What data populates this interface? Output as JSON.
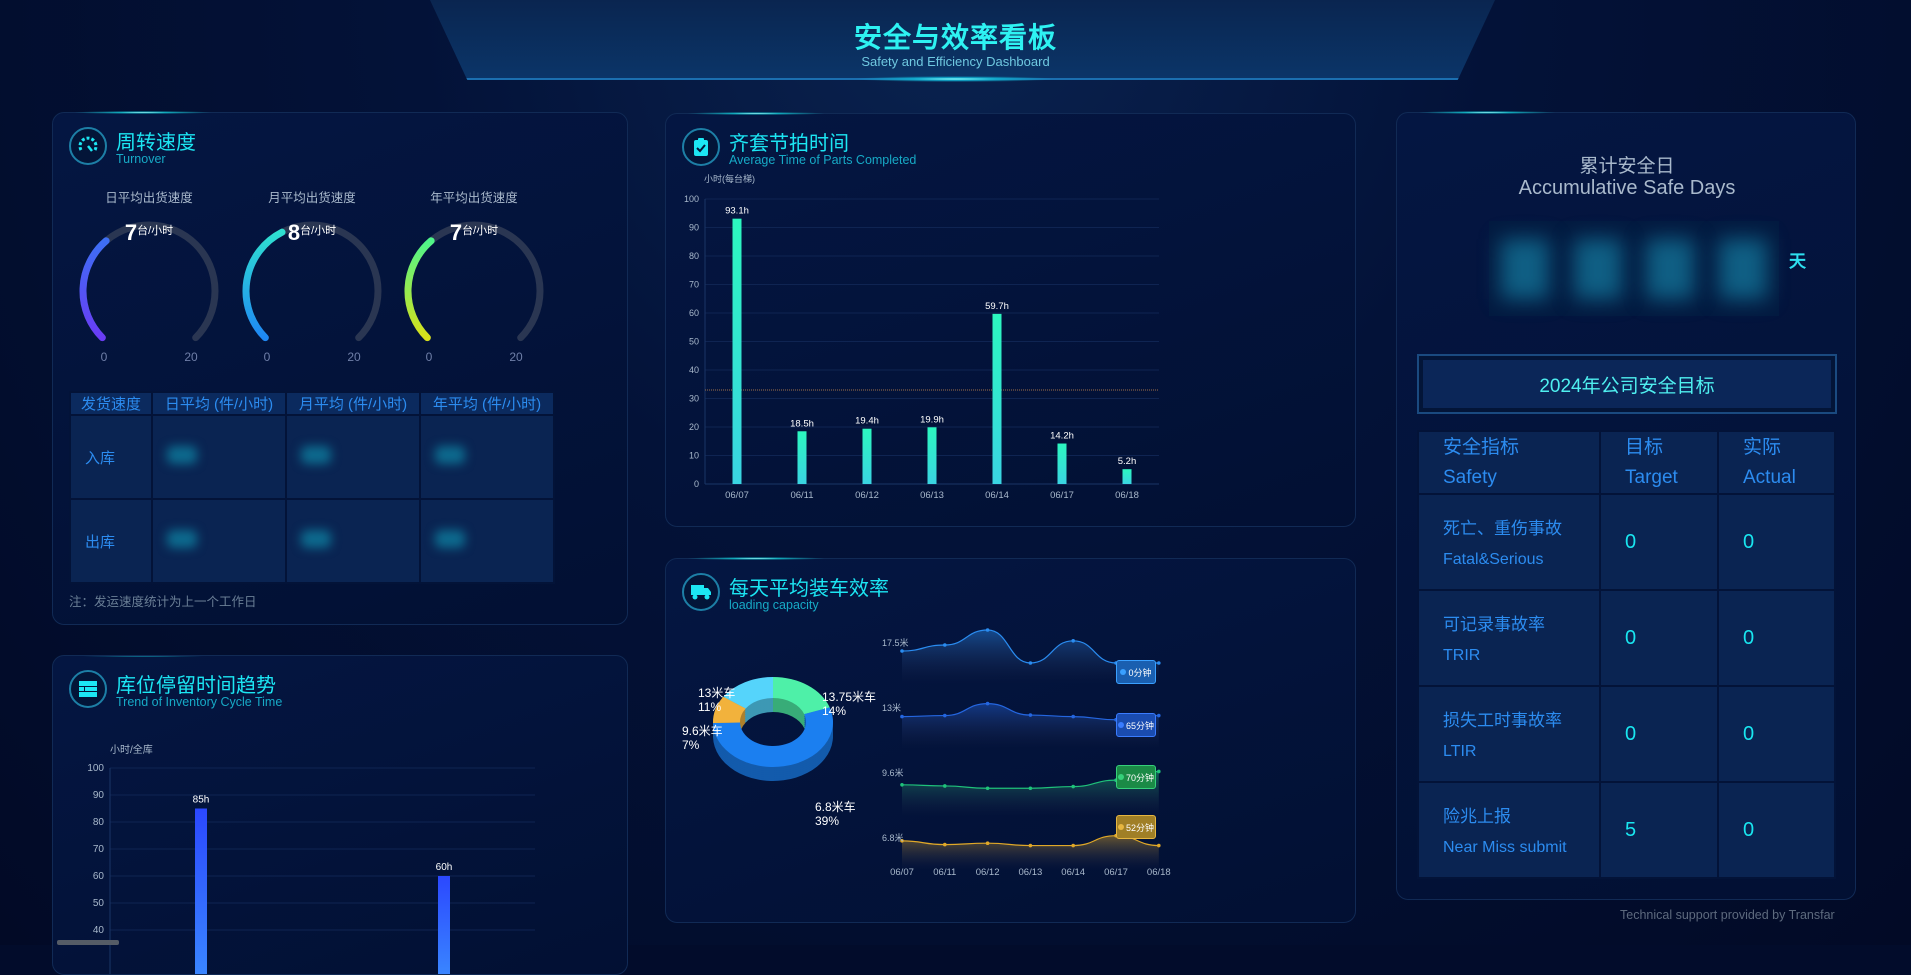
{
  "header": {
    "title": "安全与效率看板",
    "subtitle": "Safety and Efficiency Dashboard"
  },
  "turnover": {
    "title": "周转速度",
    "subtitle": "Turnover",
    "icon": "speedometer-icon",
    "gauges": [
      {
        "label": "日平均出货速度",
        "value": 7,
        "unit": "台/小时",
        "min": "0",
        "max": "20",
        "colors": [
          "#6a3cf5",
          "#3d6ff5"
        ]
      },
      {
        "label": "月平均出货速度",
        "value": 8,
        "unit": "台/小时",
        "min": "0",
        "max": "20",
        "colors": [
          "#1e88f5",
          "#2fe0d0"
        ]
      },
      {
        "label": "年平均出货速度",
        "value": 7,
        "unit": "台/小时",
        "min": "0",
        "max": "20",
        "colors": [
          "#d8e01a",
          "#4ff58a"
        ]
      }
    ],
    "table": {
      "headers": [
        "发货速度",
        "日平均 (件/小时)",
        "月平均 (件/小时)",
        "年平均 (件/小时)"
      ],
      "rows": [
        {
          "label": "入库"
        },
        {
          "label": "出库"
        }
      ]
    },
    "note": "注：发运速度统计为上一个工作日"
  },
  "inventory": {
    "title": "库位停留时间趋势",
    "subtitle": "Trend of Inventory Cycle Time",
    "icon": "table-icon",
    "chart_data": {
      "type": "bar",
      "ylabel": "小时/全库",
      "yticks": [
        100,
        90,
        80,
        70,
        60,
        50,
        40
      ],
      "ylim": [
        0,
        100
      ],
      "values": [
        85,
        60
      ],
      "data_labels": [
        "85h",
        "60h"
      ],
      "colors": [
        "#2b48ff",
        "#3a86ff"
      ]
    }
  },
  "parts": {
    "title": "齐套节拍时间",
    "subtitle": "Average Time of Parts Completed",
    "icon": "clipboard-check-icon",
    "chart_data": {
      "type": "bar",
      "ylabel": "小时(每台梯)",
      "ylim": [
        0,
        100
      ],
      "yticks": [
        0,
        10,
        20,
        30,
        40,
        50,
        60,
        70,
        80,
        90,
        100
      ],
      "categories": [
        "06/07",
        "06/11",
        "06/12",
        "06/13",
        "06/14",
        "06/17",
        "06/18"
      ],
      "values": [
        93.1,
        18.5,
        19.4,
        19.9,
        59.7,
        14.2,
        5.2
      ],
      "data_labels": [
        "93.1h",
        "18.5h",
        "19.4h",
        "19.9h",
        "59.7h",
        "14.2h",
        "5.2h"
      ],
      "reference_line": 33,
      "colors": [
        "#2cf7bf",
        "#3ad4e2"
      ],
      "grid": true
    }
  },
  "loading": {
    "title": "每天平均装车效率",
    "subtitle": "loading capacity",
    "icon": "truck-icon",
    "chart_data": [
      {
        "type": "pie",
        "slices": [
          {
            "name": "13.75米车",
            "percent": "14%",
            "value": 14,
            "color": "#4ef0a8"
          },
          {
            "name": "6.8米车",
            "percent": "39%",
            "value": 39,
            "color": "#1b7ff0"
          },
          {
            "name": "9.6米车",
            "percent": "7%",
            "value": 7,
            "color": "#f2b23c"
          },
          {
            "name": "13米车",
            "percent": "11%",
            "value": 11,
            "color": "#55d4fb"
          }
        ]
      },
      {
        "type": "area",
        "categories": [
          "06/07",
          "06/11",
          "06/12",
          "06/13",
          "06/14",
          "06/17",
          "06/18"
        ],
        "series": [
          {
            "name": "17.5米",
            "badge": "0分钟",
            "color": "#2a8cf0",
            "values": [
              40,
              50,
              75,
              20,
              57,
              20,
              20
            ]
          },
          {
            "name": "13米",
            "badge": "65分钟",
            "color": "#2466e0",
            "values": [
              45,
              47,
              70,
              48,
              45,
              39,
              47
            ]
          },
          {
            "name": "9.6米",
            "badge": "70分钟",
            "color": "#1fc27a",
            "values": [
              40,
              38,
              34,
              34,
              37,
              48,
              63
            ]
          },
          {
            "name": "6.8米",
            "badge": "52分钟",
            "color": "#e0a828",
            "values": [
              45,
              37,
              40,
              35,
              35,
              56,
              35
            ]
          }
        ]
      }
    ]
  },
  "safety": {
    "days_title": "累计安全日",
    "days_subtitle": "Accumulative Safe Days",
    "days_unit": "天",
    "goal_title": "2024年公司安全目标",
    "headers": [
      {
        "zh": "安全指标",
        "en": "Safety"
      },
      {
        "zh": "目标",
        "en": "Target"
      },
      {
        "zh": "实际",
        "en": "Actual"
      }
    ],
    "rows": [
      {
        "zh": "死亡、重伤事故",
        "en": "Fatal&Serious",
        "target": "0",
        "actual": "0"
      },
      {
        "zh": "可记录事故率",
        "en": "TRIR",
        "target": "0",
        "actual": "0"
      },
      {
        "zh": "损失工时事故率",
        "en": "LTIR",
        "target": "0",
        "actual": "0"
      },
      {
        "zh": "险兆上报",
        "en": "Near Miss submit",
        "target": "5",
        "actual": "0"
      }
    ]
  },
  "footer": "Technical support provided by Transfar"
}
